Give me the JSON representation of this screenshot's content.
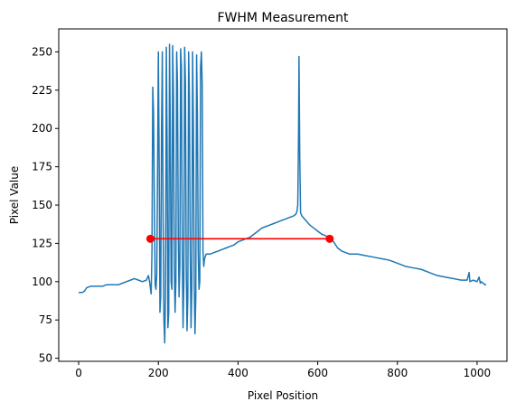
{
  "chart_data": {
    "type": "line",
    "title": "FWHM Measurement",
    "xlabel": "Pixel Position",
    "ylabel": "Pixel Value",
    "xlim": [
      -50,
      1075
    ],
    "ylim": [
      48,
      265
    ],
    "xticks": [
      0,
      200,
      400,
      600,
      800,
      1000
    ],
    "yticks": [
      50,
      75,
      100,
      125,
      150,
      175,
      200,
      225,
      250
    ],
    "grid": false,
    "series": [
      {
        "color": "#1f77b4",
        "points": [
          [
            0,
            93
          ],
          [
            10,
            93
          ],
          [
            15,
            94
          ],
          [
            20,
            96
          ],
          [
            30,
            97
          ],
          [
            60,
            97
          ],
          [
            70,
            98
          ],
          [
            100,
            98
          ],
          [
            110,
            99
          ],
          [
            120,
            100
          ],
          [
            130,
            101
          ],
          [
            140,
            102
          ],
          [
            150,
            101
          ],
          [
            160,
            100
          ],
          [
            170,
            101
          ],
          [
            175,
            104
          ],
          [
            178,
            100
          ],
          [
            180,
            96
          ],
          [
            182,
            92
          ],
          [
            184,
            120
          ],
          [
            186,
            227
          ],
          [
            188,
            210
          ],
          [
            190,
            150
          ],
          [
            192,
            98
          ],
          [
            194,
            95
          ],
          [
            196,
            105
          ],
          [
            198,
            170
          ],
          [
            200,
            250
          ],
          [
            202,
            180
          ],
          [
            204,
            80
          ],
          [
            206,
            90
          ],
          [
            208,
            200
          ],
          [
            210,
            250
          ],
          [
            212,
            140
          ],
          [
            214,
            75
          ],
          [
            216,
            60
          ],
          [
            218,
            90
          ],
          [
            220,
            253
          ],
          [
            222,
            190
          ],
          [
            224,
            70
          ],
          [
            226,
            80
          ],
          [
            228,
            255
          ],
          [
            230,
            200
          ],
          [
            232,
            100
          ],
          [
            234,
            95
          ],
          [
            236,
            254
          ],
          [
            238,
            220
          ],
          [
            240,
            110
          ],
          [
            242,
            80
          ],
          [
            244,
            100
          ],
          [
            246,
            250
          ],
          [
            248,
            230
          ],
          [
            250,
            130
          ],
          [
            252,
            90
          ],
          [
            254,
            110
          ],
          [
            256,
            252
          ],
          [
            258,
            240
          ],
          [
            260,
            120
          ],
          [
            262,
            70
          ],
          [
            264,
            100
          ],
          [
            266,
            253
          ],
          [
            268,
            230
          ],
          [
            270,
            110
          ],
          [
            272,
            68
          ],
          [
            274,
            90
          ],
          [
            276,
            250
          ],
          [
            278,
            220
          ],
          [
            280,
            120
          ],
          [
            282,
            70
          ],
          [
            284,
            95
          ],
          [
            286,
            250
          ],
          [
            288,
            200
          ],
          [
            290,
            100
          ],
          [
            292,
            66
          ],
          [
            294,
            90
          ],
          [
            296,
            248
          ],
          [
            298,
            210
          ],
          [
            300,
            120
          ],
          [
            302,
            95
          ],
          [
            304,
            100
          ],
          [
            306,
            240
          ],
          [
            308,
            250
          ],
          [
            310,
            230
          ],
          [
            312,
            120
          ],
          [
            314,
            110
          ],
          [
            316,
            115
          ],
          [
            320,
            118
          ],
          [
            330,
            118
          ],
          [
            340,
            119
          ],
          [
            350,
            120
          ],
          [
            360,
            121
          ],
          [
            370,
            122
          ],
          [
            380,
            123
          ],
          [
            390,
            124
          ],
          [
            400,
            126
          ],
          [
            410,
            127
          ],
          [
            420,
            128
          ],
          [
            430,
            129
          ],
          [
            440,
            131
          ],
          [
            450,
            133
          ],
          [
            460,
            135
          ],
          [
            470,
            136
          ],
          [
            480,
            137
          ],
          [
            490,
            138
          ],
          [
            500,
            139
          ],
          [
            510,
            140
          ],
          [
            520,
            141
          ],
          [
            530,
            142
          ],
          [
            540,
            143
          ],
          [
            545,
            144
          ],
          [
            548,
            146
          ],
          [
            550,
            150
          ],
          [
            552,
            200
          ],
          [
            553,
            247
          ],
          [
            555,
            180
          ],
          [
            557,
            145
          ],
          [
            560,
            143
          ],
          [
            570,
            140
          ],
          [
            580,
            137
          ],
          [
            590,
            135
          ],
          [
            600,
            133
          ],
          [
            610,
            131
          ],
          [
            620,
            130
          ],
          [
            630,
            128
          ],
          [
            640,
            126
          ],
          [
            650,
            122
          ],
          [
            660,
            120
          ],
          [
            680,
            118
          ],
          [
            700,
            118
          ],
          [
            720,
            117
          ],
          [
            740,
            116
          ],
          [
            760,
            115
          ],
          [
            780,
            114
          ],
          [
            800,
            112
          ],
          [
            820,
            110
          ],
          [
            840,
            109
          ],
          [
            860,
            108
          ],
          [
            880,
            106
          ],
          [
            900,
            104
          ],
          [
            920,
            103
          ],
          [
            940,
            102
          ],
          [
            960,
            101
          ],
          [
            975,
            101
          ],
          [
            980,
            106
          ],
          [
            982,
            100
          ],
          [
            990,
            101
          ],
          [
            1000,
            100
          ],
          [
            1005,
            103
          ],
          [
            1008,
            99
          ],
          [
            1010,
            100
          ],
          [
            1015,
            99
          ],
          [
            1020,
            98
          ],
          [
            1023,
            98
          ]
        ]
      },
      {
        "color": "#ff0000",
        "markers": true,
        "points": [
          [
            180,
            128
          ],
          [
            630,
            128
          ]
        ]
      }
    ]
  }
}
